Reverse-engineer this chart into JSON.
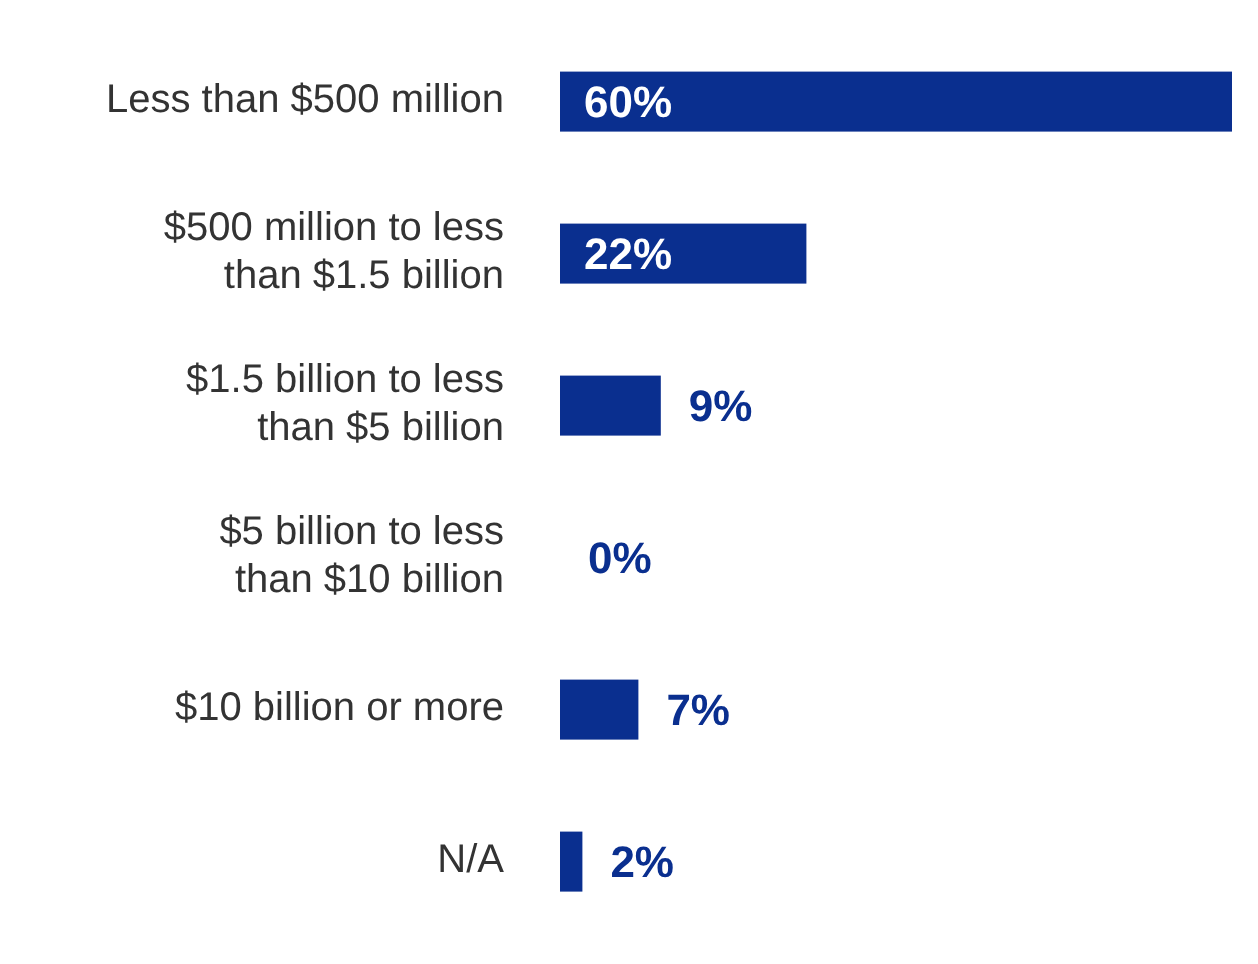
{
  "chart_data": {
    "type": "bar",
    "orientation": "horizontal",
    "categories": [
      "Less than $500 million",
      "$500 million to less than $1.5 billion",
      "$1.5 billion to less than $5 billion",
      "$5 billion to less than $10 billion",
      "$10 billion or more",
      "N/A"
    ],
    "values": [
      60,
      22,
      9,
      0,
      7,
      2
    ],
    "color": "#0a2f8f",
    "value_labels": [
      "60%",
      "22%",
      "9%",
      "0%",
      "7%",
      "2%"
    ]
  }
}
